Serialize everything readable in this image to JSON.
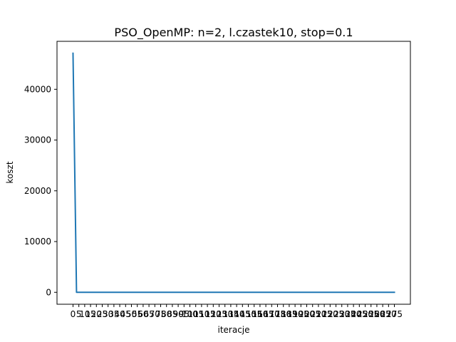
{
  "chart_data": {
    "type": "line",
    "title": "PSO_OpenMP: n=2, l.czastek10, stop=0.1",
    "xlabel": "iteracje",
    "ylabel": "koszt",
    "x_ticks": [
      0,
      5,
      10,
      15,
      20,
      25,
      30,
      35,
      40,
      45,
      50,
      55,
      60,
      65,
      70,
      75,
      80,
      85,
      90,
      95,
      100,
      105,
      110,
      115,
      120,
      125,
      130,
      135,
      140,
      145,
      150,
      155,
      160,
      165,
      170,
      175,
      180,
      185,
      190,
      195,
      200,
      205,
      210,
      215,
      220,
      225,
      230,
      235,
      240,
      245,
      250,
      255,
      260,
      265,
      270,
      275
    ],
    "y_ticks": [
      0,
      10000,
      20000,
      30000,
      40000
    ],
    "xlim": [
      -13.7,
      288.7
    ],
    "ylim": [
      -2350,
      49450
    ],
    "grid": false,
    "legend": "none",
    "series": [
      {
        "name": "",
        "color": "#1f77b4",
        "x": [
          0,
          3,
          275
        ],
        "y": [
          47100,
          0,
          0
        ]
      }
    ]
  }
}
